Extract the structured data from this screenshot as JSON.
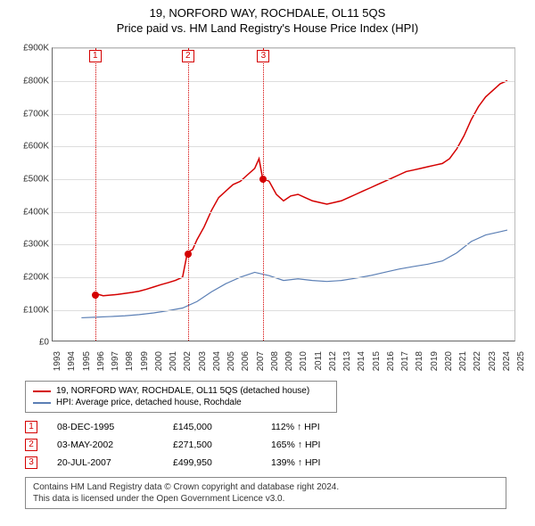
{
  "title": "19, NORFORD WAY, ROCHDALE, OL11 5QS",
  "subtitle": "Price paid vs. HM Land Registry's House Price Index (HPI)",
  "chart": {
    "type": "line",
    "background_color": "#ffffff",
    "grid_color": "#dddddd",
    "axis_color": "#666666",
    "ylim": [
      0,
      900000
    ],
    "ytick_step": 100000,
    "ytick_labels": [
      "£0",
      "£100K",
      "£200K",
      "£300K",
      "£400K",
      "£500K",
      "£600K",
      "£700K",
      "£800K",
      "£900K"
    ],
    "xlim": [
      1993,
      2025
    ],
    "xtick_labels": [
      "1993",
      "1994",
      "1995",
      "1996",
      "1997",
      "1998",
      "1999",
      "2000",
      "2001",
      "2002",
      "2003",
      "2004",
      "2005",
      "2006",
      "2007",
      "2008",
      "2009",
      "2010",
      "2011",
      "2012",
      "2013",
      "2014",
      "2015",
      "2016",
      "2017",
      "2018",
      "2019",
      "2020",
      "2021",
      "2022",
      "2023",
      "2024",
      "2025"
    ],
    "series": [
      {
        "name": "19, NORFORD WAY, ROCHDALE, OL11 5QS (detached house)",
        "color": "#d40000",
        "line_width": 1.5,
        "data": [
          [
            1995.94,
            145000
          ],
          [
            1996.5,
            138000
          ],
          [
            1997,
            140000
          ],
          [
            1997.5,
            142000
          ],
          [
            1998,
            145000
          ],
          [
            1998.5,
            148000
          ],
          [
            1999,
            152000
          ],
          [
            1999.5,
            158000
          ],
          [
            2000,
            165000
          ],
          [
            2000.5,
            172000
          ],
          [
            2001,
            178000
          ],
          [
            2001.5,
            185000
          ],
          [
            2002,
            195000
          ],
          [
            2002.34,
            271500
          ],
          [
            2002.7,
            280000
          ],
          [
            2003,
            310000
          ],
          [
            2003.5,
            350000
          ],
          [
            2004,
            400000
          ],
          [
            2004.5,
            440000
          ],
          [
            2005,
            460000
          ],
          [
            2005.5,
            480000
          ],
          [
            2006,
            490000
          ],
          [
            2006.5,
            510000
          ],
          [
            2007,
            530000
          ],
          [
            2007.3,
            560000
          ],
          [
            2007.55,
            499950
          ],
          [
            2008,
            490000
          ],
          [
            2008.5,
            450000
          ],
          [
            2009,
            430000
          ],
          [
            2009.5,
            445000
          ],
          [
            2010,
            450000
          ],
          [
            2010.5,
            440000
          ],
          [
            2011,
            430000
          ],
          [
            2011.5,
            425000
          ],
          [
            2012,
            420000
          ],
          [
            2012.5,
            425000
          ],
          [
            2013,
            430000
          ],
          [
            2013.5,
            440000
          ],
          [
            2014,
            450000
          ],
          [
            2014.5,
            460000
          ],
          [
            2015,
            470000
          ],
          [
            2015.5,
            480000
          ],
          [
            2016,
            490000
          ],
          [
            2016.5,
            500000
          ],
          [
            2017,
            510000
          ],
          [
            2017.5,
            520000
          ],
          [
            2018,
            525000
          ],
          [
            2018.5,
            530000
          ],
          [
            2019,
            535000
          ],
          [
            2019.5,
            540000
          ],
          [
            2020,
            545000
          ],
          [
            2020.5,
            560000
          ],
          [
            2021,
            590000
          ],
          [
            2021.5,
            630000
          ],
          [
            2022,
            680000
          ],
          [
            2022.5,
            720000
          ],
          [
            2023,
            750000
          ],
          [
            2023.5,
            770000
          ],
          [
            2024,
            790000
          ],
          [
            2024.5,
            800000
          ]
        ]
      },
      {
        "name": "HPI: Average price, detached house, Rochdale",
        "color": "#5b7fb5",
        "line_width": 1.2,
        "data": [
          [
            1995,
            70000
          ],
          [
            1996,
            72000
          ],
          [
            1997,
            74000
          ],
          [
            1998,
            76000
          ],
          [
            1999,
            80000
          ],
          [
            2000,
            85000
          ],
          [
            2001,
            92000
          ],
          [
            2002,
            100000
          ],
          [
            2003,
            120000
          ],
          [
            2004,
            150000
          ],
          [
            2005,
            175000
          ],
          [
            2006,
            195000
          ],
          [
            2007,
            210000
          ],
          [
            2008,
            200000
          ],
          [
            2009,
            185000
          ],
          [
            2010,
            190000
          ],
          [
            2011,
            185000
          ],
          [
            2012,
            182000
          ],
          [
            2013,
            185000
          ],
          [
            2014,
            192000
          ],
          [
            2015,
            200000
          ],
          [
            2016,
            210000
          ],
          [
            2017,
            220000
          ],
          [
            2018,
            228000
          ],
          [
            2019,
            235000
          ],
          [
            2020,
            245000
          ],
          [
            2021,
            270000
          ],
          [
            2022,
            305000
          ],
          [
            2023,
            325000
          ],
          [
            2024,
            335000
          ],
          [
            2024.5,
            340000
          ]
        ]
      }
    ],
    "event_lines": [
      {
        "x": 1995.94,
        "color": "#d40000",
        "label": "1"
      },
      {
        "x": 2002.34,
        "color": "#d40000",
        "label": "2"
      },
      {
        "x": 2007.55,
        "color": "#d40000",
        "label": "3"
      }
    ],
    "event_points": [
      {
        "x": 1995.94,
        "y": 145000,
        "color": "#d40000"
      },
      {
        "x": 2002.34,
        "y": 271500,
        "color": "#d40000"
      },
      {
        "x": 2007.55,
        "y": 499950,
        "color": "#d40000"
      }
    ]
  },
  "legend": {
    "series1": "19, NORFORD WAY, ROCHDALE, OL11 5QS (detached house)",
    "series2": "HPI: Average price, detached house, Rochdale"
  },
  "events": [
    {
      "num": "1",
      "date": "08-DEC-1995",
      "price": "£145,000",
      "pct": "112% ↑ HPI"
    },
    {
      "num": "2",
      "date": "03-MAY-2002",
      "price": "£271,500",
      "pct": "165% ↑ HPI"
    },
    {
      "num": "3",
      "date": "20-JUL-2007",
      "price": "£499,950",
      "pct": "139% ↑ HPI"
    }
  ],
  "attribution": {
    "line1": "Contains HM Land Registry data © Crown copyright and database right 2024.",
    "line2": "This data is licensed under the Open Government Licence v3.0."
  }
}
